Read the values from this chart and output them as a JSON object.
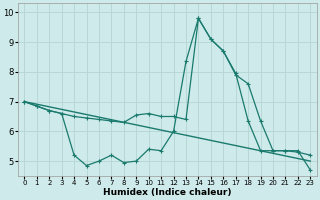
{
  "xlabel": "Humidex (Indice chaleur)",
  "bg_color": "#ceeaea",
  "line_color": "#1a7a6e",
  "grid_color": "#b8d8d8",
  "xlim": [
    -0.5,
    23.5
  ],
  "ylim": [
    4.5,
    10.3
  ],
  "yticks": [
    5,
    6,
    7,
    8,
    9,
    10
  ],
  "xticks": [
    0,
    1,
    2,
    3,
    4,
    5,
    6,
    7,
    8,
    9,
    10,
    11,
    12,
    13,
    14,
    15,
    16,
    17,
    18,
    19,
    20,
    21,
    22,
    23
  ],
  "line1_x": [
    0,
    1,
    2,
    3,
    4,
    5,
    6,
    7,
    8,
    9,
    10,
    11,
    12,
    13,
    14,
    15,
    16,
    17,
    18,
    19,
    20,
    21,
    22,
    23
  ],
  "line1_y": [
    7.0,
    6.85,
    6.7,
    6.6,
    5.2,
    4.85,
    5.0,
    5.2,
    4.95,
    5.0,
    5.4,
    5.35,
    6.0,
    8.35,
    9.8,
    9.1,
    8.7,
    7.95,
    6.35,
    5.35,
    5.35,
    5.35,
    5.35,
    4.7
  ],
  "line2_x": [
    0,
    1,
    2,
    3,
    4,
    5,
    6,
    7,
    8,
    9,
    10,
    11,
    12,
    13,
    14,
    15,
    16,
    17,
    18,
    19,
    20,
    21,
    22,
    23
  ],
  "line2_y": [
    7.0,
    6.85,
    6.7,
    6.6,
    6.5,
    6.45,
    6.4,
    6.35,
    6.3,
    6.55,
    6.6,
    6.5,
    6.5,
    6.4,
    9.8,
    9.1,
    8.7,
    7.9,
    7.6,
    6.35,
    5.35,
    5.35,
    5.3,
    5.2
  ],
  "line3_x": [
    0,
    23
  ],
  "line3_y": [
    7.0,
    5.0
  ]
}
